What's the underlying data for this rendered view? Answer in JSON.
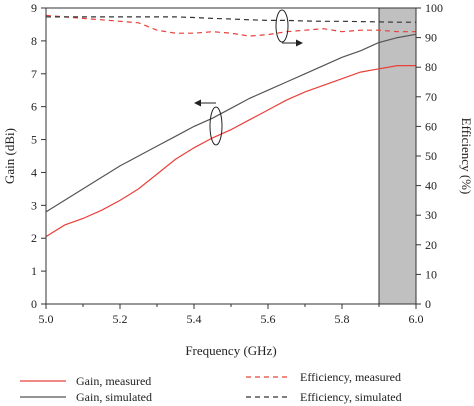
{
  "chart_data": {
    "type": "line",
    "title": "",
    "xlabel": "Frequency (GHz)",
    "ylabel_left": "Gain (dBi)",
    "ylabel_right": "Efficiency (%)",
    "xlim": [
      5.0,
      6.0
    ],
    "ylim_left": [
      0,
      9
    ],
    "ylim_right": [
      0,
      100
    ],
    "x_ticks": [
      "5.0",
      "5.2",
      "5.4",
      "5.6",
      "5.8",
      "6.0"
    ],
    "y_left_ticks": [
      "0",
      "1",
      "2",
      "3",
      "4",
      "5",
      "6",
      "7",
      "8",
      "9"
    ],
    "y_right_ticks": [
      "0",
      "10",
      "20",
      "30",
      "40",
      "50",
      "60",
      "70",
      "80",
      "90",
      "100"
    ],
    "grid": false,
    "legend_position": "bottom",
    "shaded_band": {
      "x_from": 5.9,
      "x_to": 6.0,
      "color": "#c0c0c0"
    },
    "series": [
      {
        "name": "Gain, measured",
        "axis": "left",
        "color": "#e8403a",
        "dash": "solid",
        "x": [
          5.0,
          5.05,
          5.1,
          5.15,
          5.2,
          5.25,
          5.3,
          5.35,
          5.4,
          5.45,
          5.5,
          5.55,
          5.6,
          5.65,
          5.7,
          5.75,
          5.8,
          5.85,
          5.9,
          5.95,
          6.0
        ],
        "values": [
          2.05,
          2.4,
          2.6,
          2.85,
          3.15,
          3.5,
          3.95,
          4.4,
          4.75,
          5.05,
          5.3,
          5.6,
          5.9,
          6.2,
          6.45,
          6.65,
          6.85,
          7.05,
          7.15,
          7.25,
          7.25
        ]
      },
      {
        "name": "Gain, simulated",
        "axis": "left",
        "color": "#555555",
        "dash": "solid",
        "x": [
          5.0,
          5.05,
          5.1,
          5.15,
          5.2,
          5.25,
          5.3,
          5.35,
          5.4,
          5.45,
          5.5,
          5.55,
          5.6,
          5.65,
          5.7,
          5.75,
          5.8,
          5.85,
          5.9,
          5.95,
          6.0
        ],
        "values": [
          2.8,
          3.15,
          3.5,
          3.85,
          4.2,
          4.5,
          4.8,
          5.1,
          5.4,
          5.65,
          5.95,
          6.25,
          6.5,
          6.75,
          7.0,
          7.25,
          7.5,
          7.7,
          7.95,
          8.1,
          8.2
        ]
      },
      {
        "name": "Efficiency, measured",
        "axis": "right",
        "color": "#e8403a",
        "dash": "dashed",
        "x": [
          5.0,
          5.05,
          5.1,
          5.15,
          5.2,
          5.25,
          5.3,
          5.35,
          5.4,
          5.45,
          5.5,
          5.55,
          5.6,
          5.65,
          5.7,
          5.75,
          5.8,
          5.85,
          5.9,
          5.95,
          6.0
        ],
        "values": [
          97.5,
          97.0,
          96.5,
          96.0,
          95.5,
          95.0,
          92.5,
          91.5,
          91.5,
          92.0,
          91.5,
          90.5,
          91.0,
          92.0,
          92.5,
          93.0,
          92.0,
          92.5,
          92.5,
          92.0,
          92.0
        ]
      },
      {
        "name": "Efficiency, simulated",
        "axis": "right",
        "color": "#333333",
        "dash": "dashed",
        "x": [
          5.0,
          5.05,
          5.1,
          5.15,
          5.2,
          5.25,
          5.3,
          5.35,
          5.4,
          5.45,
          5.5,
          5.55,
          5.6,
          5.65,
          5.7,
          5.75,
          5.8,
          5.85,
          5.9,
          5.95,
          6.0
        ],
        "values": [
          97.0,
          97.0,
          97.0,
          97.0,
          97.0,
          97.0,
          97.0,
          97.0,
          96.8,
          96.5,
          96.3,
          96.0,
          95.8,
          95.8,
          95.6,
          95.5,
          95.5,
          95.4,
          95.3,
          95.2,
          95.2
        ]
      }
    ]
  }
}
